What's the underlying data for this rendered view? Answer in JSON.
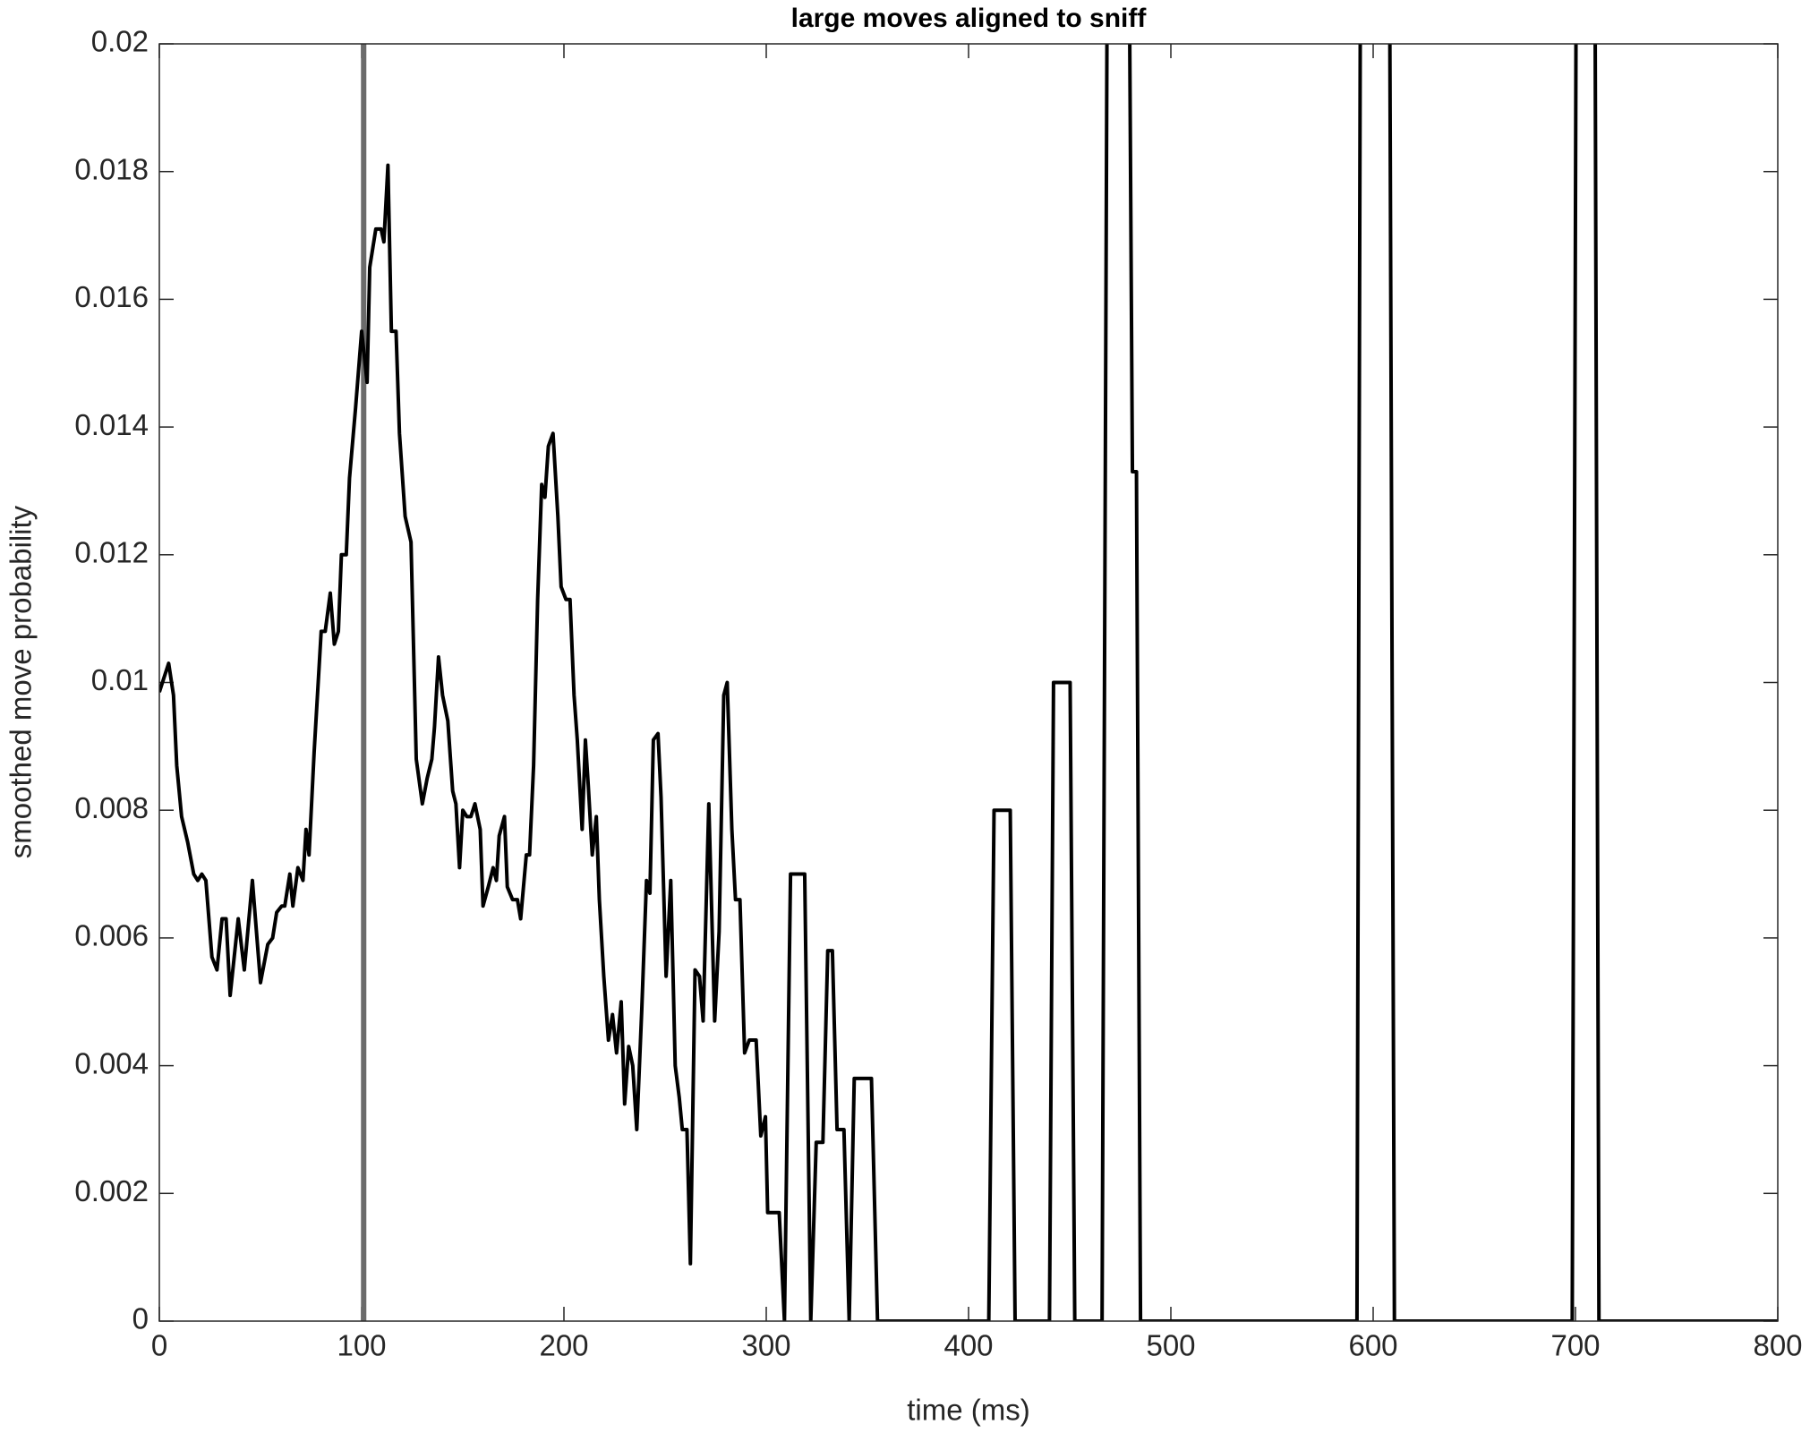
{
  "chart_data": {
    "type": "line",
    "title": "large moves aligned to sniff",
    "x_label": "time (ms)",
    "y_label": "smoothed move probability",
    "xlim": [
      0,
      800
    ],
    "xticks": [
      0,
      100,
      200,
      300,
      400,
      500,
      600,
      700,
      800
    ],
    "ylim": [
      0,
      0.02
    ],
    "yticks": [
      0,
      0.002,
      0.004,
      0.006,
      0.008,
      0.01,
      0.012,
      0.014,
      0.016,
      0.018,
      0.02
    ],
    "vline": {
      "x": 101,
      "color": "#6b6b6b"
    },
    "series": [
      {
        "color": "#000000",
        "x": [
          0,
          4.6,
          7,
          8.6,
          11,
          14,
          17,
          19,
          21,
          23,
          26,
          28.5,
          31,
          33,
          35,
          39,
          42,
          46,
          50,
          53.6,
          56,
          58,
          60.5,
          62,
          64.5,
          66,
          68.5,
          71,
          72.5,
          74,
          76.5,
          80,
          82,
          84.5,
          86.5,
          88.5,
          90,
          92.4,
          94,
          97,
          100,
          102.7,
          104,
          107,
          109.6,
          111,
          113,
          114.7,
          117,
          118.7,
          121.5,
          124.4,
          127,
          130,
          132.4,
          134.7,
          136,
          138,
          140,
          142.6,
          145,
          146.6,
          148.4,
          150,
          152,
          154,
          156,
          158.6,
          160,
          162.6,
          165,
          166.6,
          168,
          170.6,
          172,
          174.6,
          177,
          178.6,
          181.4,
          183,
          185,
          187,
          189,
          190.6,
          192.3,
          194.6,
          197,
          198.6,
          201,
          203,
          205,
          206.6,
          209,
          210.6,
          212,
          214,
          216,
          217.5,
          219.7,
          222,
          224,
          226,
          228.3,
          230,
          232,
          234,
          236,
          238.5,
          240.8,
          242.5,
          244.2,
          246.5,
          248,
          250.5,
          252.8,
          255,
          257,
          258.5,
          260.8,
          262.5,
          264.8,
          267,
          268.8,
          271.6,
          274.5,
          276.7,
          279,
          280.7,
          283,
          284.8,
          287,
          289.3,
          291.6,
          295,
          297.3,
          299.6,
          300.7,
          306.4,
          309,
          312,
          319,
          322,
          324.7,
          328,
          330.4,
          332.7,
          335,
          338.4,
          341,
          343.5,
          352,
          355,
          410,
          412.6,
          420.6,
          423,
          440,
          442,
          450.2,
          452.5,
          466,
          469,
          478.7,
          481,
          483,
          485,
          592,
          594,
          607.7,
          610.5,
          698.4,
          700.7,
          709.3,
          711.6,
          800
        ],
        "values": [
          0.00985,
          0.0103,
          0.0098,
          0.0087,
          0.0079,
          0.0075,
          0.007,
          0.0069,
          0.007,
          0.0069,
          0.0057,
          0.0055,
          0.0063,
          0.0063,
          0.0051,
          0.0063,
          0.0055,
          0.0069,
          0.0053,
          0.0059,
          0.006,
          0.0064,
          0.0065,
          0.0065,
          0.007,
          0.0065,
          0.0071,
          0.0069,
          0.0077,
          0.0073,
          0.0089,
          0.0108,
          0.0108,
          0.0114,
          0.0106,
          0.0108,
          0.012,
          0.012,
          0.0132,
          0.0143,
          0.0155,
          0.0147,
          0.0165,
          0.0171,
          0.0171,
          0.0169,
          0.0181,
          0.0155,
          0.0155,
          0.0139,
          0.0126,
          0.0122,
          0.0088,
          0.0081,
          0.0085,
          0.0088,
          0.0093,
          0.0104,
          0.0098,
          0.0094,
          0.0083,
          0.0081,
          0.0071,
          0.008,
          0.0079,
          0.0079,
          0.0081,
          0.0077,
          0.0065,
          0.0068,
          0.0071,
          0.0069,
          0.0076,
          0.0079,
          0.0068,
          0.0066,
          0.0066,
          0.0063,
          0.0073,
          0.0073,
          0.0087,
          0.0113,
          0.0131,
          0.0129,
          0.0137,
          0.0139,
          0.0126,
          0.0115,
          0.0113,
          0.0113,
          0.0098,
          0.0091,
          0.0077,
          0.0091,
          0.0084,
          0.0073,
          0.0079,
          0.0066,
          0.0054,
          0.0044,
          0.0048,
          0.0042,
          0.005,
          0.0034,
          0.0043,
          0.004,
          0.003,
          0.0049,
          0.0069,
          0.0067,
          0.0091,
          0.0092,
          0.0082,
          0.0054,
          0.0069,
          0.004,
          0.0035,
          0.003,
          0.003,
          0.0009,
          0.0055,
          0.0054,
          0.0047,
          0.0081,
          0.0047,
          0.0061,
          0.0098,
          0.01,
          0.0077,
          0.0066,
          0.0066,
          0.0042,
          0.0044,
          0.0044,
          0.0029,
          0.0032,
          0.0017,
          0.0017,
          0,
          0.007,
          0.007,
          0,
          0.0028,
          0.0028,
          0.0058,
          0.0058,
          0.003,
          0.003,
          0,
          0.0038,
          0.0038,
          0,
          0,
          0.008,
          0.008,
          0,
          0,
          0.01,
          0.01,
          0,
          0,
          0.025,
          0.025,
          0.0133,
          0.0133,
          0,
          0,
          0.025,
          0.025,
          0,
          0,
          0.025,
          0.025,
          0,
          0
        ]
      }
    ]
  }
}
